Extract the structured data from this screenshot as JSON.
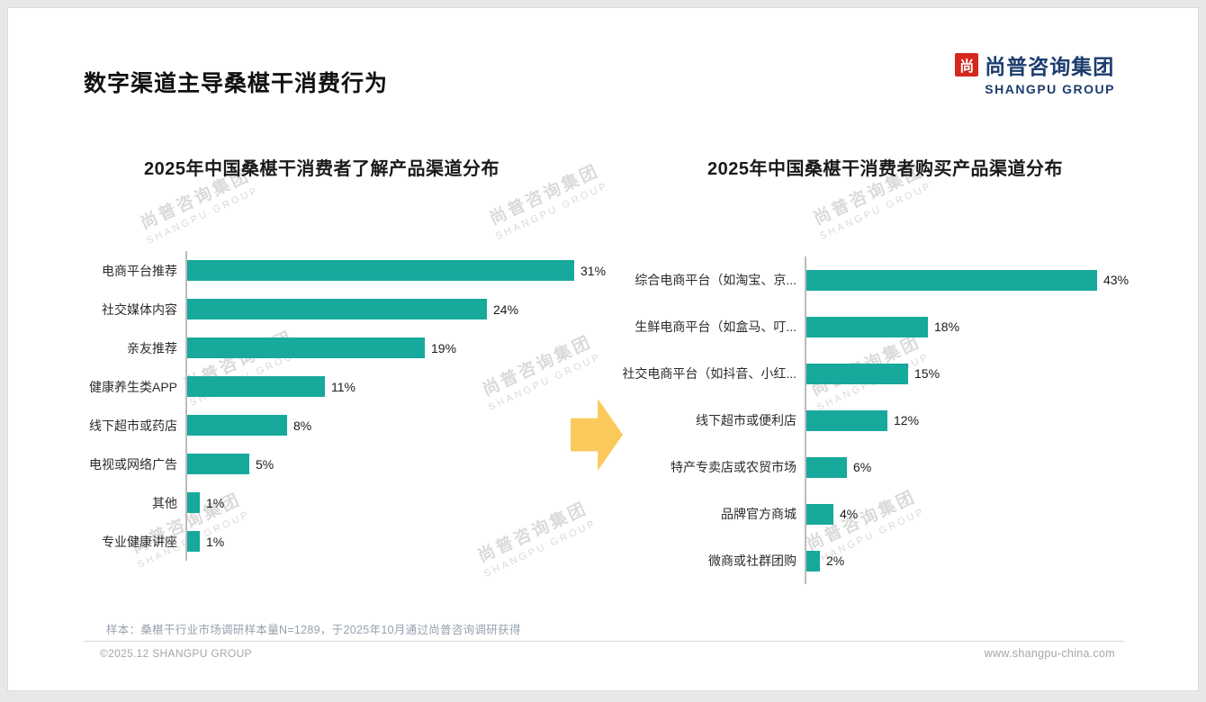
{
  "page": {
    "title": "数字渠道主导桑椹干消费行为"
  },
  "logo": {
    "cn": "尚普咨询集团",
    "en": "SHANGPU GROUP",
    "mark": "尚"
  },
  "watermark": {
    "cn": "尚普咨询集团",
    "en": "SHANGPU GROUP"
  },
  "footer": {
    "sample_note": "样本：桑椹干行业市场调研样本量N=1289，于2025年10月通过尚普咨询调研获得",
    "left": "©2025.12 SHANGPU GROUP",
    "right": "www.shangpu-china.com"
  },
  "colors": {
    "bar": "#16a99c",
    "arrow": "#fbc95b",
    "logo_navy": "#1d3c6e",
    "logo_red": "#d5281f"
  },
  "chart_data": [
    {
      "type": "bar",
      "orientation": "horizontal",
      "title": "2025年中国桑椹干消费者了解产品渠道分布",
      "categories": [
        "电商平台推荐",
        "社交媒体内容",
        "亲友推荐",
        "健康养生类APP",
        "线下超市或药店",
        "电视或网络广告",
        "其他",
        "专业健康讲座"
      ],
      "values": [
        31,
        24,
        19,
        11,
        8,
        5,
        1,
        1
      ],
      "unit": "%",
      "xlim": [
        0,
        33
      ],
      "grid": false,
      "legend": false
    },
    {
      "type": "bar",
      "orientation": "horizontal",
      "title": "2025年中国桑椹干消费者购买产品渠道分布",
      "categories": [
        "综合电商平台（如淘宝、京...",
        "生鲜电商平台（如盒马、叮...",
        "社交电商平台（如抖音、小红...",
        "线下超市或便利店",
        "特产专卖店或农贸市场",
        "品牌官方商城",
        "微商或社群团购"
      ],
      "values": [
        43,
        18,
        15,
        12,
        6,
        4,
        2
      ],
      "unit": "%",
      "xlim": [
        0,
        46
      ],
      "grid": false,
      "legend": false
    }
  ]
}
